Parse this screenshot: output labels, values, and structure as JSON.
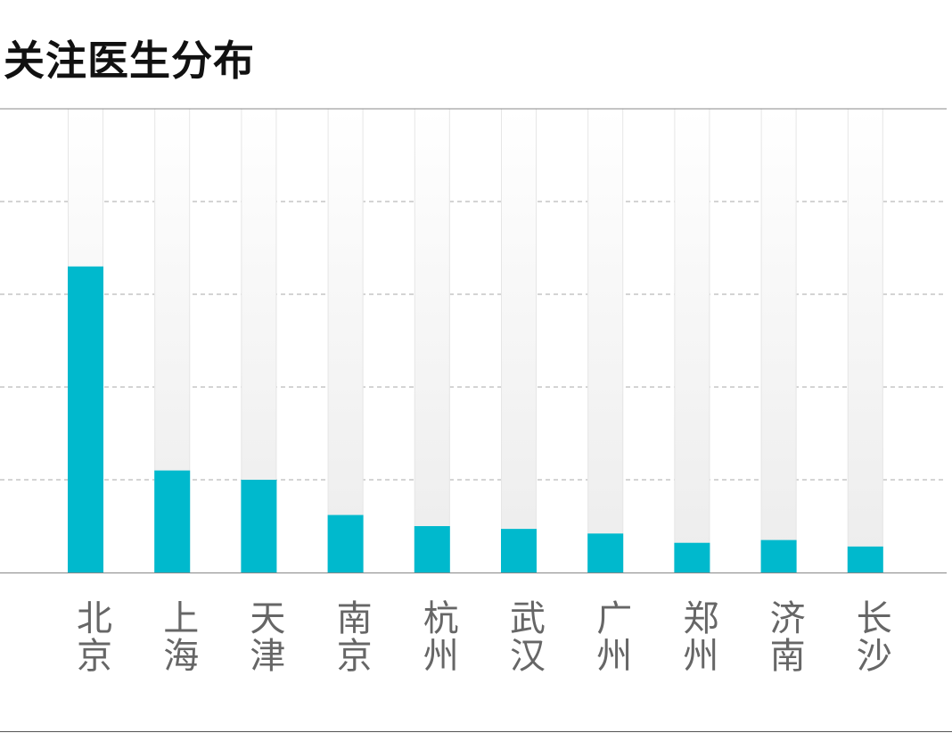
{
  "title": "关注医生分布",
  "colors": {
    "bar": "#00b9cd",
    "track_top": "#ffffff",
    "track_bottom": "#ececec",
    "axis": "#888888",
    "grid": "#aaaaaa",
    "label": "#666666"
  },
  "chart_data": {
    "type": "bar",
    "categories": [
      "北京",
      "上海",
      "天津",
      "南京",
      "杭州",
      "武汉",
      "广州",
      "郑州",
      "济南",
      "长沙"
    ],
    "values": [
      3.3,
      1.1,
      1.0,
      0.62,
      0.5,
      0.47,
      0.42,
      0.32,
      0.35,
      0.28
    ],
    "ylim": [
      0,
      5
    ],
    "grid": true,
    "background_track": true
  }
}
